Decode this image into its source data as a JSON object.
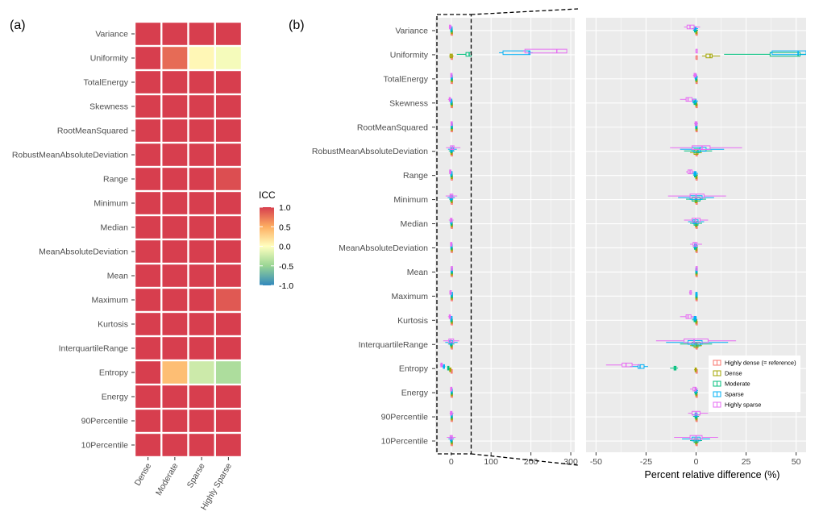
{
  "panel_a_tag": "(a)",
  "panel_b_tag": "(b)",
  "chart_data": [
    {
      "type": "heatmap",
      "panel": "(a)",
      "rows": [
        "Variance",
        "Uniformity",
        "TotalEnergy",
        "Skewness",
        "RootMeanSquared",
        "RobustMeanAbsoluteDeviation",
        "Range",
        "Minimum",
        "Median",
        "MeanAbsoluteDeviation",
        "Mean",
        "Maximum",
        "Kurtosis",
        "InterquartileRange",
        "Entropy",
        "Energy",
        "90Percentile",
        "10Percentile"
      ],
      "columns": [
        "Dense",
        "Moderate",
        "Sparse",
        "Highly Sparse"
      ],
      "values": [
        [
          1.0,
          1.0,
          1.0,
          1.0
        ],
        [
          1.0,
          0.8,
          0.05,
          -0.05
        ],
        [
          1.0,
          1.0,
          1.0,
          1.0
        ],
        [
          1.0,
          1.0,
          1.0,
          1.0
        ],
        [
          1.0,
          1.0,
          1.0,
          1.0
        ],
        [
          1.0,
          1.0,
          1.0,
          1.0
        ],
        [
          1.0,
          1.0,
          1.0,
          0.93
        ],
        [
          1.0,
          1.0,
          1.0,
          1.0
        ],
        [
          1.0,
          1.0,
          1.0,
          1.0
        ],
        [
          1.0,
          1.0,
          1.0,
          1.0
        ],
        [
          1.0,
          1.0,
          1.0,
          1.0
        ],
        [
          1.0,
          1.0,
          1.0,
          0.88
        ],
        [
          1.0,
          1.0,
          1.0,
          1.0
        ],
        [
          1.0,
          1.0,
          1.0,
          1.0
        ],
        [
          1.0,
          0.4,
          -0.25,
          -0.4
        ],
        [
          1.0,
          1.0,
          1.0,
          1.0
        ],
        [
          1.0,
          1.0,
          1.0,
          1.0
        ],
        [
          1.0,
          1.0,
          1.0,
          1.0
        ]
      ],
      "legend": {
        "title": "ICC",
        "ticks": [
          1.0,
          0.5,
          0.0,
          -0.5,
          -1.0
        ],
        "tick_labels": [
          "1.0",
          "0.5",
          "0.0",
          "-0.5",
          "-1.0"
        ],
        "placement": "right"
      },
      "xlabel": "",
      "ylabel": ""
    },
    {
      "type": "boxplot",
      "panel": "(b) left (full range)",
      "x_ticks": [
        0,
        100,
        200,
        300
      ],
      "x_tick_labels": [
        "0",
        "100",
        "200",
        "300"
      ],
      "xlim": [
        -40,
        310
      ],
      "zoom_region": [
        -40,
        50
      ],
      "xlabel": "",
      "ylabel": ""
    },
    {
      "type": "boxplot",
      "panel": "(b) right (zoomed)",
      "xlabel": "Percent relative difference (%)",
      "ylabel": "",
      "xlim": [
        -55,
        55
      ],
      "x_ticks": [
        -50,
        -25,
        0,
        25,
        50
      ],
      "x_tick_labels": [
        "-50",
        "-25",
        "0",
        "25",
        "50"
      ],
      "categories": [
        "Variance",
        "Uniformity",
        "TotalEnergy",
        "Skewness",
        "RootMeanSquared",
        "RobustMeanAbsoluteDeviation",
        "Range",
        "Minimum",
        "Median",
        "MeanAbsoluteDeviation",
        "Mean",
        "Maximum",
        "Kurtosis",
        "InterquartileRange",
        "Entropy",
        "Energy",
        "90Percentile",
        "10Percentile"
      ],
      "series": [
        {
          "name": "Highly dense (= reference)",
          "color": "#F8766D",
          "boxes": [
            [
              0,
              0,
              0,
              0,
              0
            ],
            [
              0,
              0,
              0,
              0,
              0
            ],
            [
              0,
              0,
              0,
              0,
              0
            ],
            [
              0,
              0,
              0,
              0,
              0
            ],
            [
              0,
              0,
              0,
              0,
              0
            ],
            [
              0,
              0,
              0,
              0,
              0
            ],
            [
              0,
              0,
              0,
              0,
              0
            ],
            [
              0,
              0,
              0,
              0,
              0
            ],
            [
              0,
              0,
              0,
              0,
              0
            ],
            [
              0,
              0,
              0,
              0,
              0
            ],
            [
              0,
              0,
              0,
              0,
              0
            ],
            [
              0,
              0,
              0,
              0,
              0
            ],
            [
              0,
              0,
              0,
              0,
              0
            ],
            [
              0,
              0,
              0,
              0,
              0
            ],
            [
              0,
              0,
              0,
              0,
              0
            ],
            [
              0,
              0,
              0,
              0,
              0
            ],
            [
              0,
              0,
              0,
              0,
              0
            ],
            [
              0,
              0,
              0,
              0,
              0
            ]
          ]
        },
        {
          "name": "Dense",
          "color": "#A3A500",
          "boxes": [
            [
              -0.5,
              -0.2,
              0,
              0.2,
              0.5
            ],
            [
              3,
              5,
              7,
              8,
              12
            ],
            [
              -0.3,
              -0.1,
              0,
              0.1,
              0.3
            ],
            [
              -0.5,
              -0.2,
              0,
              0.2,
              0.5
            ],
            [
              -0.3,
              -0.1,
              0,
              0.1,
              0.3
            ],
            [
              -3,
              -1,
              0,
              1,
              3
            ],
            [
              -0.5,
              -0.2,
              0,
              0.2,
              0.5
            ],
            [
              -1.5,
              -0.5,
              0,
              0.5,
              1.5
            ],
            [
              -1,
              -0.3,
              0,
              0.3,
              1
            ],
            [
              -0.5,
              -0.2,
              0,
              0.2,
              0.5
            ],
            [
              -0.2,
              -0.1,
              0,
              0.1,
              0.2
            ],
            [
              -0.3,
              -0.1,
              0,
              0.1,
              0.3
            ],
            [
              -0.5,
              -0.2,
              0,
              0.2,
              0.5
            ],
            [
              -3,
              -1,
              0,
              1,
              3
            ],
            [
              -1,
              -0.5,
              -0.3,
              -0.1,
              0.2
            ],
            [
              -0.5,
              -0.2,
              0,
              0.2,
              0.5
            ],
            [
              -0.5,
              -0.2,
              0,
              0.2,
              0.5
            ],
            [
              -1,
              -0.3,
              0,
              0.3,
              1
            ]
          ]
        },
        {
          "name": "Moderate",
          "color": "#00BF7D",
          "boxes": [
            [
              -1.5,
              -0.8,
              -0.5,
              0,
              1
            ],
            [
              14,
              37,
              51,
              52,
              60
            ],
            [
              -0.5,
              -0.3,
              0,
              0.2,
              0.5
            ],
            [
              -1.5,
              -1,
              -0.5,
              0,
              0.5
            ],
            [
              -0.5,
              -0.2,
              0,
              0.2,
              0.5
            ],
            [
              -6,
              -1,
              1,
              2,
              8
            ],
            [
              -1.5,
              -0.8,
              -0.5,
              0,
              1
            ],
            [
              -5,
              -2,
              0,
              2,
              5
            ],
            [
              -3,
              -1,
              0,
              1,
              3
            ],
            [
              -1.5,
              -0.8,
              -0.3,
              0,
              1
            ],
            [
              -0.2,
              -0.1,
              0,
              0.1,
              0.2
            ],
            [
              -0.3,
              -0.1,
              0,
              0.1,
              0.3
            ],
            [
              -2,
              -1,
              -0.5,
              0,
              0.5
            ],
            [
              -8,
              -2,
              0,
              2,
              8
            ],
            [
              -13,
              -11,
              -10.5,
              -10,
              -9
            ],
            [
              -1,
              -0.5,
              0,
              0.3,
              1
            ],
            [
              -1.5,
              -0.5,
              0,
              0.5,
              1.5
            ],
            [
              -3,
              -1,
              0,
              1,
              3
            ]
          ]
        },
        {
          "name": "Sparse",
          "color": "#00B0F6",
          "boxes": [
            [
              -2,
              -1,
              -0.5,
              0,
              1
            ],
            [
              37,
              38,
              51,
              55,
              60
            ],
            [
              -1,
              -0.5,
              0,
              0.3,
              1
            ],
            [
              -2,
              -1.5,
              -0.5,
              0,
              1
            ],
            [
              -0.5,
              -0.2,
              0,
              0.2,
              0.5
            ],
            [
              -8,
              -2,
              2,
              5,
              14
            ],
            [
              -2,
              -1,
              -0.5,
              0,
              1
            ],
            [
              -9,
              -3,
              0,
              3,
              9
            ],
            [
              -4,
              -1.5,
              -0.5,
              1,
              4
            ],
            [
              -1.5,
              -0.8,
              -0.3,
              0,
              1
            ],
            [
              -0.2,
              -0.1,
              0,
              0.1,
              0.2
            ],
            [
              -0.3,
              -0.1,
              0,
              0.1,
              0.3
            ],
            [
              -2,
              -1,
              -0.5,
              0,
              0.5
            ],
            [
              -15,
              -4,
              -1,
              3,
              16
            ],
            [
              -33,
              -29,
              -28,
              -26,
              -24
            ],
            [
              -1,
              -0.5,
              0,
              0.3,
              1
            ],
            [
              -2,
              -0.5,
              0,
              0.5,
              2
            ],
            [
              -7,
              -2,
              0,
              2,
              7
            ]
          ]
        },
        {
          "name": "Highly sparse",
          "color": "#E76BF3",
          "boxes": [
            [
              -6,
              -4.5,
              -3,
              -1,
              2
            ],
            [
              0,
              0,
              0,
              0,
              0
            ],
            [
              -1.5,
              -1,
              -0.5,
              0,
              0.5
            ],
            [
              -8,
              -5,
              -4,
              -2,
              0
            ],
            [
              -1,
              -0.5,
              0,
              0.5,
              1
            ],
            [
              -13,
              -2,
              3,
              7,
              23
            ],
            [
              -5,
              -4,
              -3,
              -2,
              -1
            ],
            [
              -14,
              -3,
              0,
              4,
              15
            ],
            [
              -6,
              -2,
              -0.3,
              2,
              6
            ],
            [
              -3,
              -1.5,
              -0.5,
              0.5,
              3
            ],
            [
              -0.1,
              0,
              0,
              0,
              0.1
            ],
            [
              -3.5,
              -3,
              -3,
              -2.5,
              -2
            ],
            [
              -8,
              -5,
              -4,
              -2.5,
              -1
            ],
            [
              -20,
              -6,
              -1,
              6,
              20
            ],
            [
              -45,
              -37,
              -35,
              -32,
              -28
            ],
            [
              -3,
              -1.5,
              -0.5,
              0,
              1
            ],
            [
              -4,
              -2,
              0,
              2,
              6
            ],
            [
              -11,
              -3,
              0,
              3,
              11
            ]
          ]
        }
      ],
      "legend": {
        "placement": "inside-bottom-right",
        "entries": [
          "Highly dense (= reference)",
          "Dense",
          "Moderate",
          "Sparse",
          "Highly sparse"
        ]
      }
    }
  ]
}
